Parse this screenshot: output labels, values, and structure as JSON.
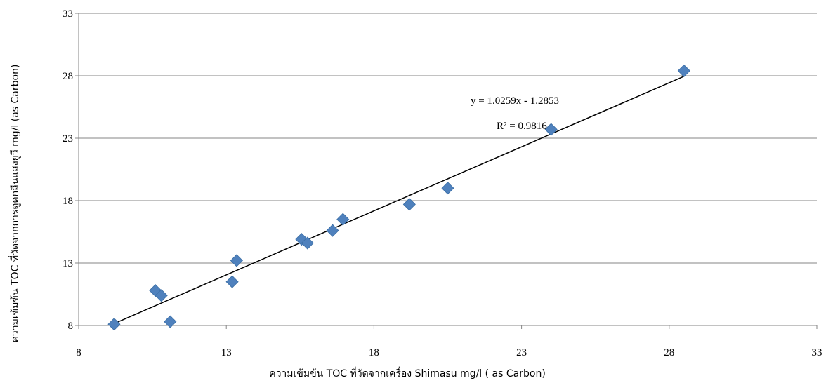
{
  "chart_data": {
    "type": "scatter",
    "xlabel": "ความเข้มข้น TOC ที่วัดจากเครื่อง Shimasu mg/l ( as Carbon)",
    "ylabel": "ความเข้มข้น TOC ที่วัดจากการดูดกลืนแสงยูวี mg/l (as Carbon)",
    "xlim": [
      8,
      33
    ],
    "ylim": [
      8,
      33
    ],
    "xticks": [
      8,
      13,
      18,
      23,
      28,
      33
    ],
    "yticks": [
      8,
      13,
      18,
      23,
      28,
      33
    ],
    "grid": "horizontal",
    "marker_color": "#4F81BD",
    "trendline_color": "#000000",
    "points": [
      {
        "x": 9.2,
        "y": 8.1
      },
      {
        "x": 11.1,
        "y": 8.3
      },
      {
        "x": 10.6,
        "y": 10.8
      },
      {
        "x": 10.8,
        "y": 10.4
      },
      {
        "x": 13.2,
        "y": 11.5
      },
      {
        "x": 13.35,
        "y": 13.2
      },
      {
        "x": 15.55,
        "y": 14.9
      },
      {
        "x": 15.75,
        "y": 14.6
      },
      {
        "x": 16.6,
        "y": 15.6
      },
      {
        "x": 16.95,
        "y": 16.5
      },
      {
        "x": 19.2,
        "y": 17.7
      },
      {
        "x": 20.5,
        "y": 19.0
      },
      {
        "x": 24.0,
        "y": 23.7
      },
      {
        "x": 28.5,
        "y": 28.4
      }
    ],
    "trendline": {
      "x": [
        9.2,
        28.5
      ],
      "equation": "y = 1.0259x - 1.2853",
      "r_squared": "R² = 0.9816"
    }
  }
}
